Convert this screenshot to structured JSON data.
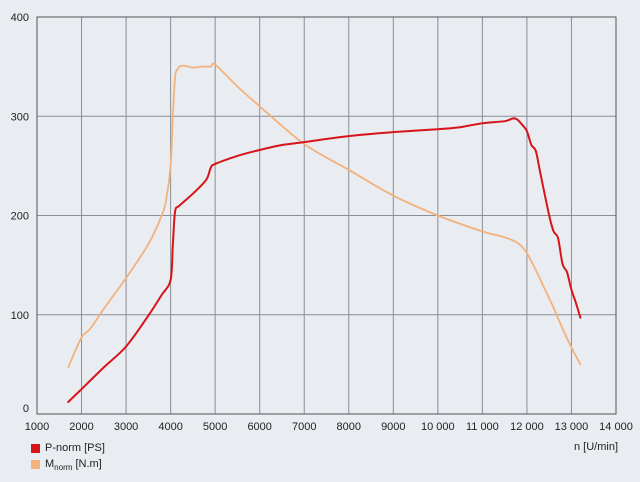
{
  "chart_data": {
    "type": "line",
    "xlim": [
      1000,
      14000
    ],
    "ylim": [
      0,
      400
    ],
    "x_ticks": [
      1000,
      2000,
      3000,
      4000,
      5000,
      6000,
      7000,
      8000,
      9000,
      10000,
      11000,
      12000,
      13000,
      14000
    ],
    "x_tick_labels": [
      "1000",
      "2000",
      "3000",
      "4000",
      "5000",
      "6000",
      "7000",
      "8000",
      "9000",
      "10 000",
      "11 000",
      "12 000",
      "13 000",
      "14 000"
    ],
    "y_ticks": [
      0,
      100,
      200,
      300,
      400
    ],
    "y_tick_labels": [
      "0",
      "100",
      "200",
      "300",
      "400"
    ],
    "grid": true,
    "xlabel": "n [U/min]",
    "legend_placement": "bottom-left",
    "series": [
      {
        "name": "P-norm [PS]",
        "color": "#d7141a",
        "x": [
          1700,
          2000,
          2500,
          3000,
          3500,
          3800,
          4000,
          4050,
          4100,
          4200,
          4500,
          4800,
          4900,
          5000,
          5500,
          6000,
          6500,
          7000,
          8000,
          9000,
          10000,
          10500,
          11000,
          11500,
          11700,
          11800,
          11900,
          12000,
          12100,
          12200,
          12300,
          12500,
          12600,
          12700,
          12800,
          12900,
          13000,
          13100,
          13200
        ],
        "y": [
          12,
          25,
          47,
          68,
          99,
          120,
          135,
          170,
          204,
          210,
          222,
          236,
          248,
          252,
          260,
          266,
          271,
          274,
          280,
          284,
          287,
          289,
          293,
          295,
          298,
          296,
          291,
          285,
          271,
          265,
          243,
          200,
          184,
          177,
          151,
          143,
          125,
          112,
          97
        ]
      },
      {
        "name": "M_norm [N.m]",
        "color": "#f3b27c",
        "x": [
          1700,
          2000,
          2200,
          2500,
          3000,
          3500,
          3800,
          3900,
          4000,
          4050,
          4100,
          4150,
          4200,
          4300,
          4500,
          4700,
          4900,
          5000,
          5500,
          6000,
          7000,
          8000,
          9000,
          10000,
          11000,
          11500,
          11800,
          12000,
          12200,
          12400,
          12600,
          12800,
          13000,
          13200
        ],
        "y": [
          47,
          77,
          86,
          106,
          137,
          171,
          200,
          216,
          250,
          300,
          340,
          347,
          350,
          351,
          349,
          350,
          350,
          352,
          330,
          310,
          272,
          246,
          220,
          200,
          184,
          178,
          172,
          162,
          145,
          126,
          107,
          86,
          67,
          50
        ]
      }
    ]
  },
  "legend": {
    "items": [
      {
        "label_main": "P-norm [PS]",
        "label_sub": "",
        "color": "#d7141a"
      },
      {
        "label_main": "M",
        "label_sub": "norm",
        "label_tail": " [N.m]",
        "color": "#f3b27c"
      }
    ]
  }
}
